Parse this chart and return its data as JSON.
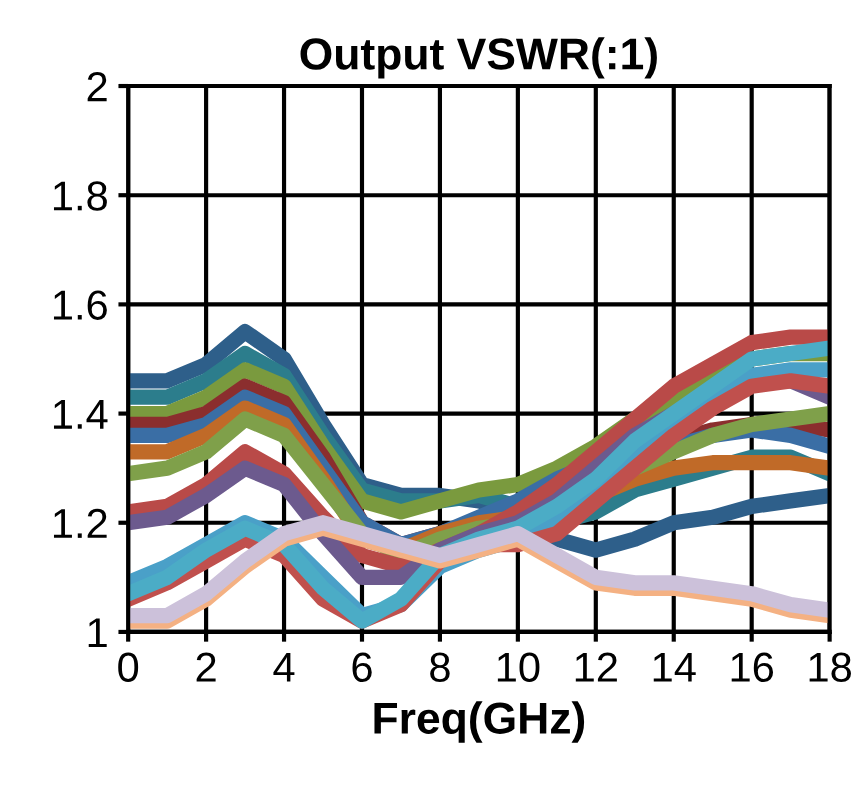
{
  "chart_data": {
    "type": "line",
    "title": "Output VSWR(:1)",
    "xlabel": "Freq(GHz)",
    "x": [
      0,
      1,
      2,
      3,
      4,
      5,
      6,
      7,
      8,
      9,
      10,
      11,
      12,
      13,
      14,
      15,
      16,
      17,
      18
    ],
    "xlim": [
      0,
      18
    ],
    "xticks": [
      0,
      2,
      4,
      6,
      8,
      10,
      12,
      14,
      16,
      18
    ],
    "ylim": [
      1,
      2
    ],
    "yticks": [
      1,
      1.2,
      1.4,
      1.6,
      1.8,
      2
    ],
    "grid": true,
    "legend": false,
    "marker": "none",
    "line_style": "solid",
    "series": [
      {
        "color": "#2e5f8a",
        "values": [
          1.46,
          1.46,
          1.49,
          1.55,
          1.5,
          1.38,
          1.27,
          1.25,
          1.25,
          1.24,
          1.22,
          1.17,
          1.15,
          1.17,
          1.2,
          1.21,
          1.23,
          1.24,
          1.25
        ]
      },
      {
        "color": "#2c7d8c",
        "values": [
          1.43,
          1.43,
          1.46,
          1.51,
          1.47,
          1.36,
          1.26,
          1.24,
          1.24,
          1.25,
          1.23,
          1.2,
          1.22,
          1.26,
          1.28,
          1.3,
          1.32,
          1.32,
          1.29
        ]
      },
      {
        "color": "#7a9a3e",
        "values": [
          1.4,
          1.4,
          1.43,
          1.48,
          1.45,
          1.34,
          1.24,
          1.22,
          1.24,
          1.26,
          1.27,
          1.3,
          1.34,
          1.39,
          1.43,
          1.47,
          1.5,
          1.51,
          1.51
        ]
      },
      {
        "color": "#8b2e2e",
        "values": [
          1.38,
          1.38,
          1.4,
          1.45,
          1.42,
          1.32,
          1.2,
          1.16,
          1.18,
          1.2,
          1.22,
          1.26,
          1.3,
          1.33,
          1.35,
          1.37,
          1.38,
          1.38,
          1.37
        ]
      },
      {
        "color": "#3a6ea5",
        "values": [
          1.36,
          1.36,
          1.38,
          1.43,
          1.4,
          1.3,
          1.2,
          1.16,
          1.18,
          1.21,
          1.24,
          1.28,
          1.31,
          1.33,
          1.34,
          1.36,
          1.37,
          1.36,
          1.34
        ]
      },
      {
        "color": "#c06a28",
        "values": [
          1.33,
          1.33,
          1.36,
          1.41,
          1.38,
          1.28,
          1.17,
          1.15,
          1.18,
          1.2,
          1.21,
          1.22,
          1.25,
          1.28,
          1.3,
          1.31,
          1.31,
          1.31,
          1.3
        ]
      },
      {
        "color": "#7fa04a",
        "values": [
          1.29,
          1.3,
          1.33,
          1.39,
          1.36,
          1.27,
          1.18,
          1.14,
          1.17,
          1.19,
          1.2,
          1.22,
          1.26,
          1.3,
          1.33,
          1.36,
          1.38,
          1.39,
          1.4
        ]
      },
      {
        "color": "#b94a48",
        "values": [
          1.22,
          1.23,
          1.27,
          1.33,
          1.29,
          1.21,
          1.14,
          1.12,
          1.15,
          1.18,
          1.22,
          1.27,
          1.33,
          1.39,
          1.45,
          1.49,
          1.53,
          1.54,
          1.54
        ]
      },
      {
        "color": "#6c5a8e",
        "values": [
          1.2,
          1.21,
          1.25,
          1.3,
          1.27,
          1.18,
          1.1,
          1.1,
          1.15,
          1.18,
          1.2,
          1.24,
          1.3,
          1.36,
          1.4,
          1.43,
          1.47,
          1.46,
          1.43
        ]
      },
      {
        "color": "#4aa0c8",
        "values": [
          1.09,
          1.12,
          1.16,
          1.2,
          1.17,
          1.1,
          1.03,
          1.05,
          1.12,
          1.15,
          1.17,
          1.2,
          1.26,
          1.33,
          1.38,
          1.42,
          1.47,
          1.48,
          1.48
        ]
      },
      {
        "color": "#c0504d",
        "values": [
          1.06,
          1.09,
          1.13,
          1.17,
          1.14,
          1.06,
          1.02,
          1.05,
          1.13,
          1.16,
          1.16,
          1.18,
          1.24,
          1.3,
          1.36,
          1.41,
          1.45,
          1.46,
          1.45
        ]
      },
      {
        "color": "#4bacc6",
        "values": [
          1.07,
          1.1,
          1.15,
          1.19,
          1.16,
          1.08,
          1.02,
          1.06,
          1.14,
          1.17,
          1.19,
          1.23,
          1.28,
          1.35,
          1.4,
          1.45,
          1.5,
          1.51,
          1.52
        ]
      },
      {
        "color": "#f4b183",
        "values": [
          1.02,
          1.02,
          1.06,
          1.12,
          1.17,
          1.19,
          1.17,
          1.15,
          1.13,
          1.15,
          1.17,
          1.13,
          1.09,
          1.08,
          1.08,
          1.07,
          1.06,
          1.04,
          1.03
        ]
      },
      {
        "color": "#ccc1da",
        "values": [
          1.03,
          1.03,
          1.07,
          1.13,
          1.18,
          1.2,
          1.18,
          1.16,
          1.14,
          1.16,
          1.18,
          1.14,
          1.1,
          1.09,
          1.09,
          1.08,
          1.07,
          1.05,
          1.04
        ]
      }
    ]
  }
}
